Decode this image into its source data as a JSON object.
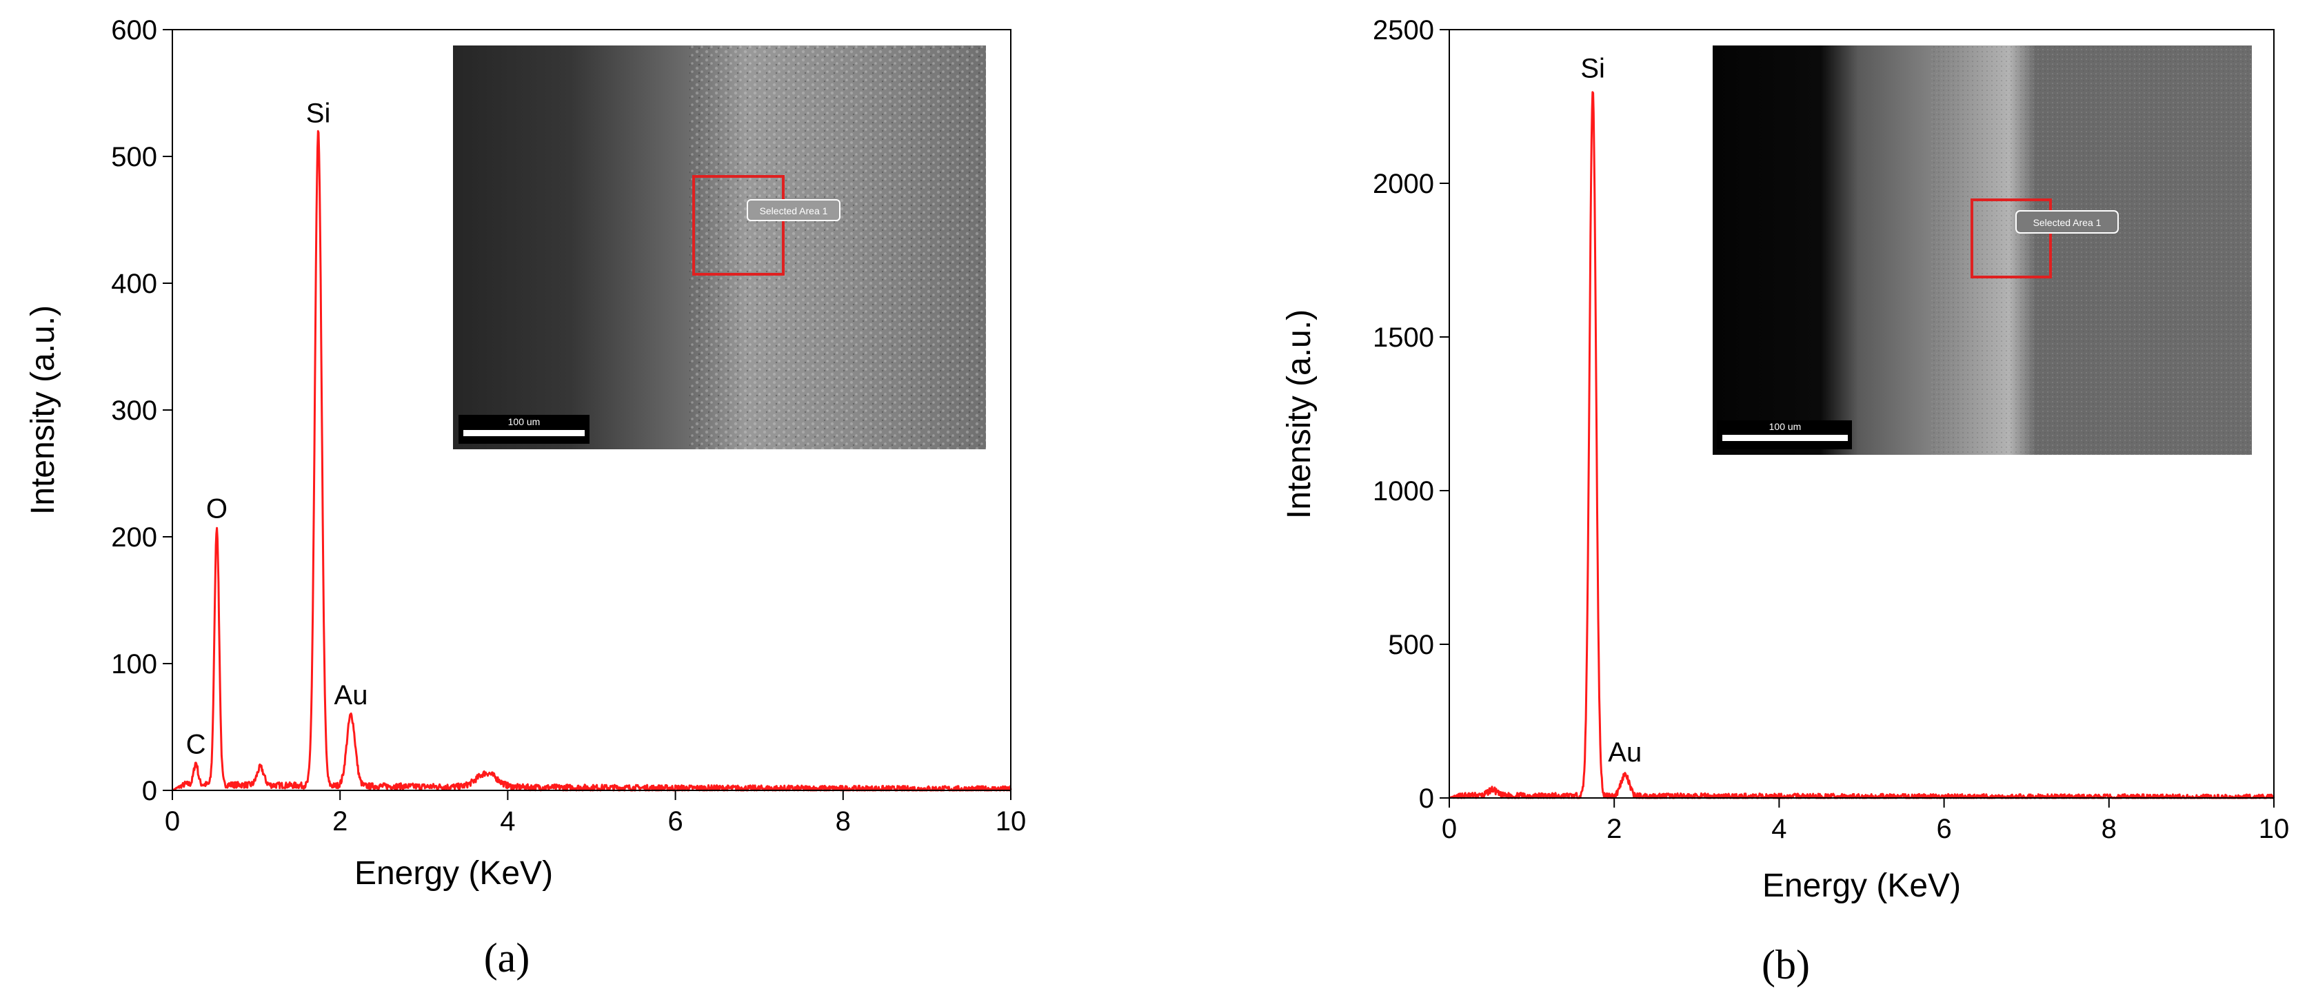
{
  "colors": {
    "spectrum": "#ff1a1a",
    "axis": "#000000",
    "roi": "#e02020"
  },
  "chart_data": [
    {
      "type": "line",
      "panel_label": "(a)",
      "xlabel": "Energy (KeV)",
      "ylabel": "Intensity (a.u.)",
      "xlim": [
        0,
        10
      ],
      "ylim": [
        0,
        600
      ],
      "xticks": [
        0,
        2,
        4,
        6,
        8,
        10
      ],
      "yticks": [
        0,
        100,
        200,
        300,
        400,
        500,
        600
      ],
      "baseline": 5,
      "peaks": [
        {
          "label": "C",
          "x": 0.28,
          "y": 17,
          "width": 0.025
        },
        {
          "label": "O",
          "x": 0.53,
          "y": 203,
          "width": 0.028
        },
        {
          "label": "",
          "x": 1.05,
          "y": 14,
          "width": 0.04
        },
        {
          "label": "Si",
          "x": 1.74,
          "y": 515,
          "width": 0.04
        },
        {
          "label": "Au",
          "x": 2.13,
          "y": 56,
          "width": 0.05
        },
        {
          "label": "",
          "x": 3.75,
          "y": 11,
          "width": 0.12
        }
      ],
      "annotations": [
        {
          "text": "C",
          "x": 0.28,
          "y": 17
        },
        {
          "text": "O",
          "x": 0.53,
          "y": 203
        },
        {
          "text": "Si",
          "x": 1.74,
          "y": 515
        },
        {
          "text": "Au",
          "x": 2.13,
          "y": 56
        }
      ],
      "inset": {
        "roi_label": "Selected Area 1",
        "scale_label": "100 um"
      }
    },
    {
      "type": "line",
      "panel_label": "(b)",
      "xlabel": "Energy (KeV)",
      "ylabel": "Intensity (a.u.)",
      "xlim": [
        0,
        10
      ],
      "ylim": [
        0,
        2500
      ],
      "xticks": [
        0,
        2,
        4,
        6,
        8,
        10
      ],
      "yticks": [
        0,
        500,
        1000,
        1500,
        2000,
        2500
      ],
      "baseline": 8,
      "peaks": [
        {
          "label": "",
          "x": 0.52,
          "y": 20,
          "width": 0.05
        },
        {
          "label": "Si",
          "x": 1.74,
          "y": 2295,
          "width": 0.04
        },
        {
          "label": "Au",
          "x": 2.13,
          "y": 70,
          "width": 0.05
        }
      ],
      "annotations": [
        {
          "text": "Si",
          "x": 1.74,
          "y": 2295
        },
        {
          "text": "Au",
          "x": 2.13,
          "y": 70
        }
      ],
      "inset": {
        "roi_label": "Selected Area 1",
        "scale_label": "100 um"
      }
    }
  ]
}
